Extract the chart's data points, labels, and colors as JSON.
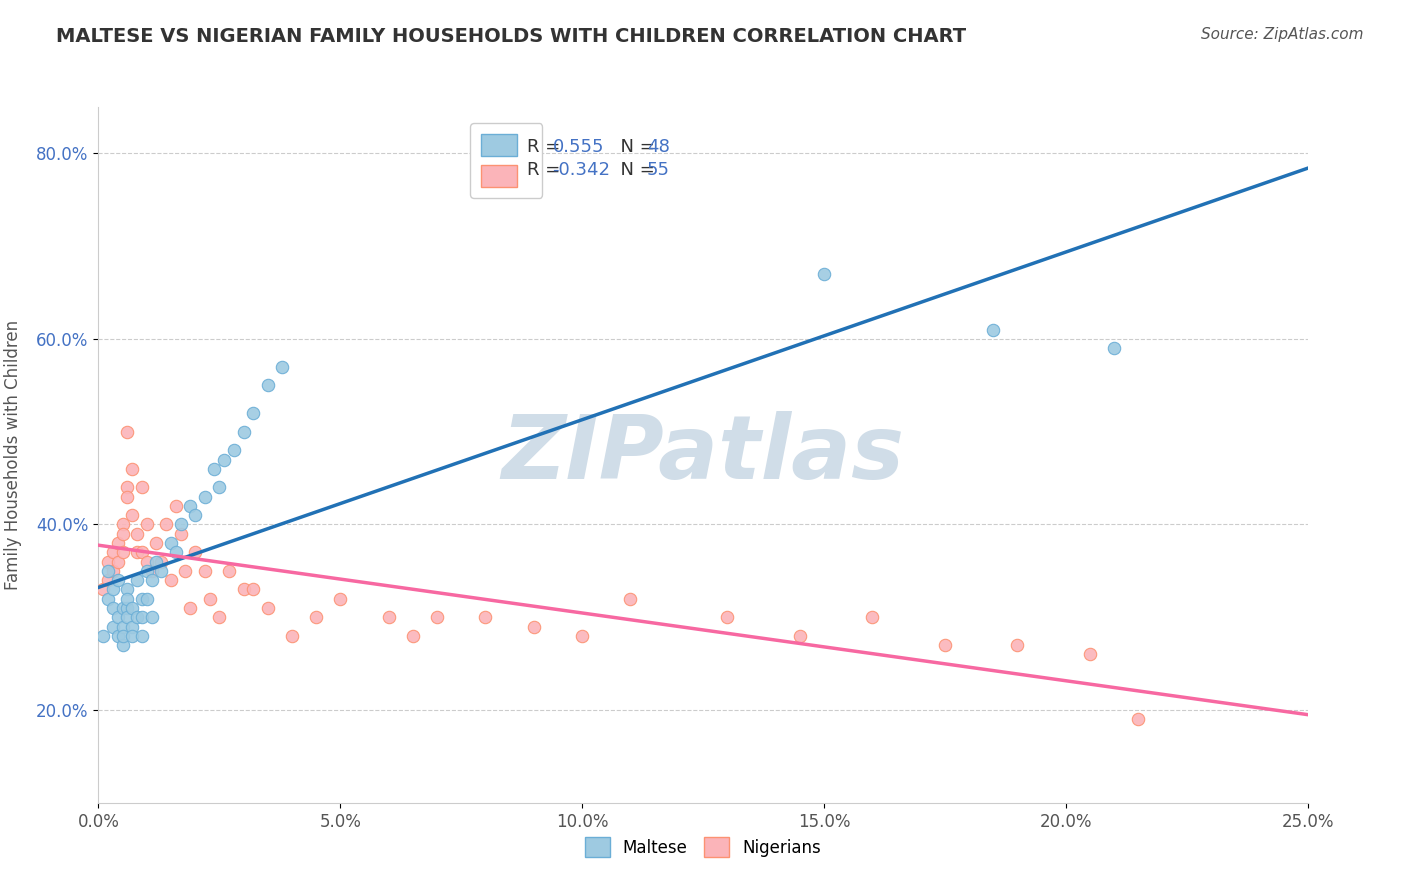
{
  "title": "MALTESE VS NIGERIAN FAMILY HOUSEHOLDS WITH CHILDREN CORRELATION CHART",
  "source": "Source: ZipAtlas.com",
  "ylabel": "Family Households with Children",
  "xlim": [
    0.0,
    0.25
  ],
  "ylim": [
    0.1,
    0.85
  ],
  "xtick_labels": [
    "0.0%",
    "5.0%",
    "10.0%",
    "15.0%",
    "20.0%",
    "25.0%"
  ],
  "xtick_vals": [
    0.0,
    0.05,
    0.1,
    0.15,
    0.2,
    0.25
  ],
  "ytick_labels": [
    "20.0%",
    "40.0%",
    "60.0%",
    "80.0%"
  ],
  "ytick_vals": [
    0.2,
    0.4,
    0.6,
    0.8
  ],
  "maltese_R": 0.555,
  "maltese_N": 48,
  "nigerian_R": -0.342,
  "nigerian_N": 55,
  "maltese_edge_color": "#6baed6",
  "nigerian_edge_color": "#fc9272",
  "maltese_line_color": "#2171b5",
  "nigerian_line_color": "#f768a1",
  "maltese_scatter_color": "#9ecae1",
  "nigerian_scatter_color": "#fbb4b9",
  "background_color": "#ffffff",
  "grid_color": "#cccccc",
  "watermark_text": "ZIPatlas",
  "watermark_color": "#d0dde8",
  "text_dark": "#333333",
  "text_mid": "#555555",
  "text_blue": "#4472c4",
  "maltese_x": [
    0.001,
    0.002,
    0.002,
    0.003,
    0.003,
    0.003,
    0.004,
    0.004,
    0.004,
    0.005,
    0.005,
    0.005,
    0.005,
    0.006,
    0.006,
    0.006,
    0.006,
    0.007,
    0.007,
    0.007,
    0.008,
    0.008,
    0.009,
    0.009,
    0.009,
    0.01,
    0.01,
    0.011,
    0.011,
    0.012,
    0.013,
    0.015,
    0.016,
    0.017,
    0.019,
    0.02,
    0.022,
    0.024,
    0.025,
    0.026,
    0.028,
    0.03,
    0.032,
    0.035,
    0.038,
    0.15,
    0.185,
    0.21
  ],
  "maltese_y": [
    0.28,
    0.35,
    0.32,
    0.31,
    0.29,
    0.33,
    0.3,
    0.28,
    0.34,
    0.29,
    0.27,
    0.31,
    0.28,
    0.33,
    0.31,
    0.3,
    0.32,
    0.29,
    0.28,
    0.31,
    0.3,
    0.34,
    0.32,
    0.3,
    0.28,
    0.35,
    0.32,
    0.34,
    0.3,
    0.36,
    0.35,
    0.38,
    0.37,
    0.4,
    0.42,
    0.41,
    0.43,
    0.46,
    0.44,
    0.47,
    0.48,
    0.5,
    0.52,
    0.55,
    0.57,
    0.67,
    0.61,
    0.59
  ],
  "nigerian_x": [
    0.001,
    0.002,
    0.002,
    0.003,
    0.003,
    0.004,
    0.004,
    0.005,
    0.005,
    0.005,
    0.006,
    0.006,
    0.006,
    0.007,
    0.007,
    0.008,
    0.008,
    0.009,
    0.009,
    0.01,
    0.01,
    0.011,
    0.012,
    0.013,
    0.014,
    0.015,
    0.016,
    0.017,
    0.018,
    0.019,
    0.02,
    0.022,
    0.023,
    0.025,
    0.027,
    0.03,
    0.032,
    0.035,
    0.04,
    0.045,
    0.05,
    0.06,
    0.065,
    0.07,
    0.08,
    0.09,
    0.1,
    0.11,
    0.13,
    0.145,
    0.16,
    0.175,
    0.19,
    0.205,
    0.215
  ],
  "nigerian_y": [
    0.33,
    0.36,
    0.34,
    0.37,
    0.35,
    0.38,
    0.36,
    0.4,
    0.37,
    0.39,
    0.44,
    0.5,
    0.43,
    0.41,
    0.46,
    0.37,
    0.39,
    0.37,
    0.44,
    0.36,
    0.4,
    0.35,
    0.38,
    0.36,
    0.4,
    0.34,
    0.42,
    0.39,
    0.35,
    0.31,
    0.37,
    0.35,
    0.32,
    0.3,
    0.35,
    0.33,
    0.33,
    0.31,
    0.28,
    0.3,
    0.32,
    0.3,
    0.28,
    0.3,
    0.3,
    0.29,
    0.28,
    0.32,
    0.3,
    0.28,
    0.3,
    0.27,
    0.27,
    0.26,
    0.19
  ]
}
